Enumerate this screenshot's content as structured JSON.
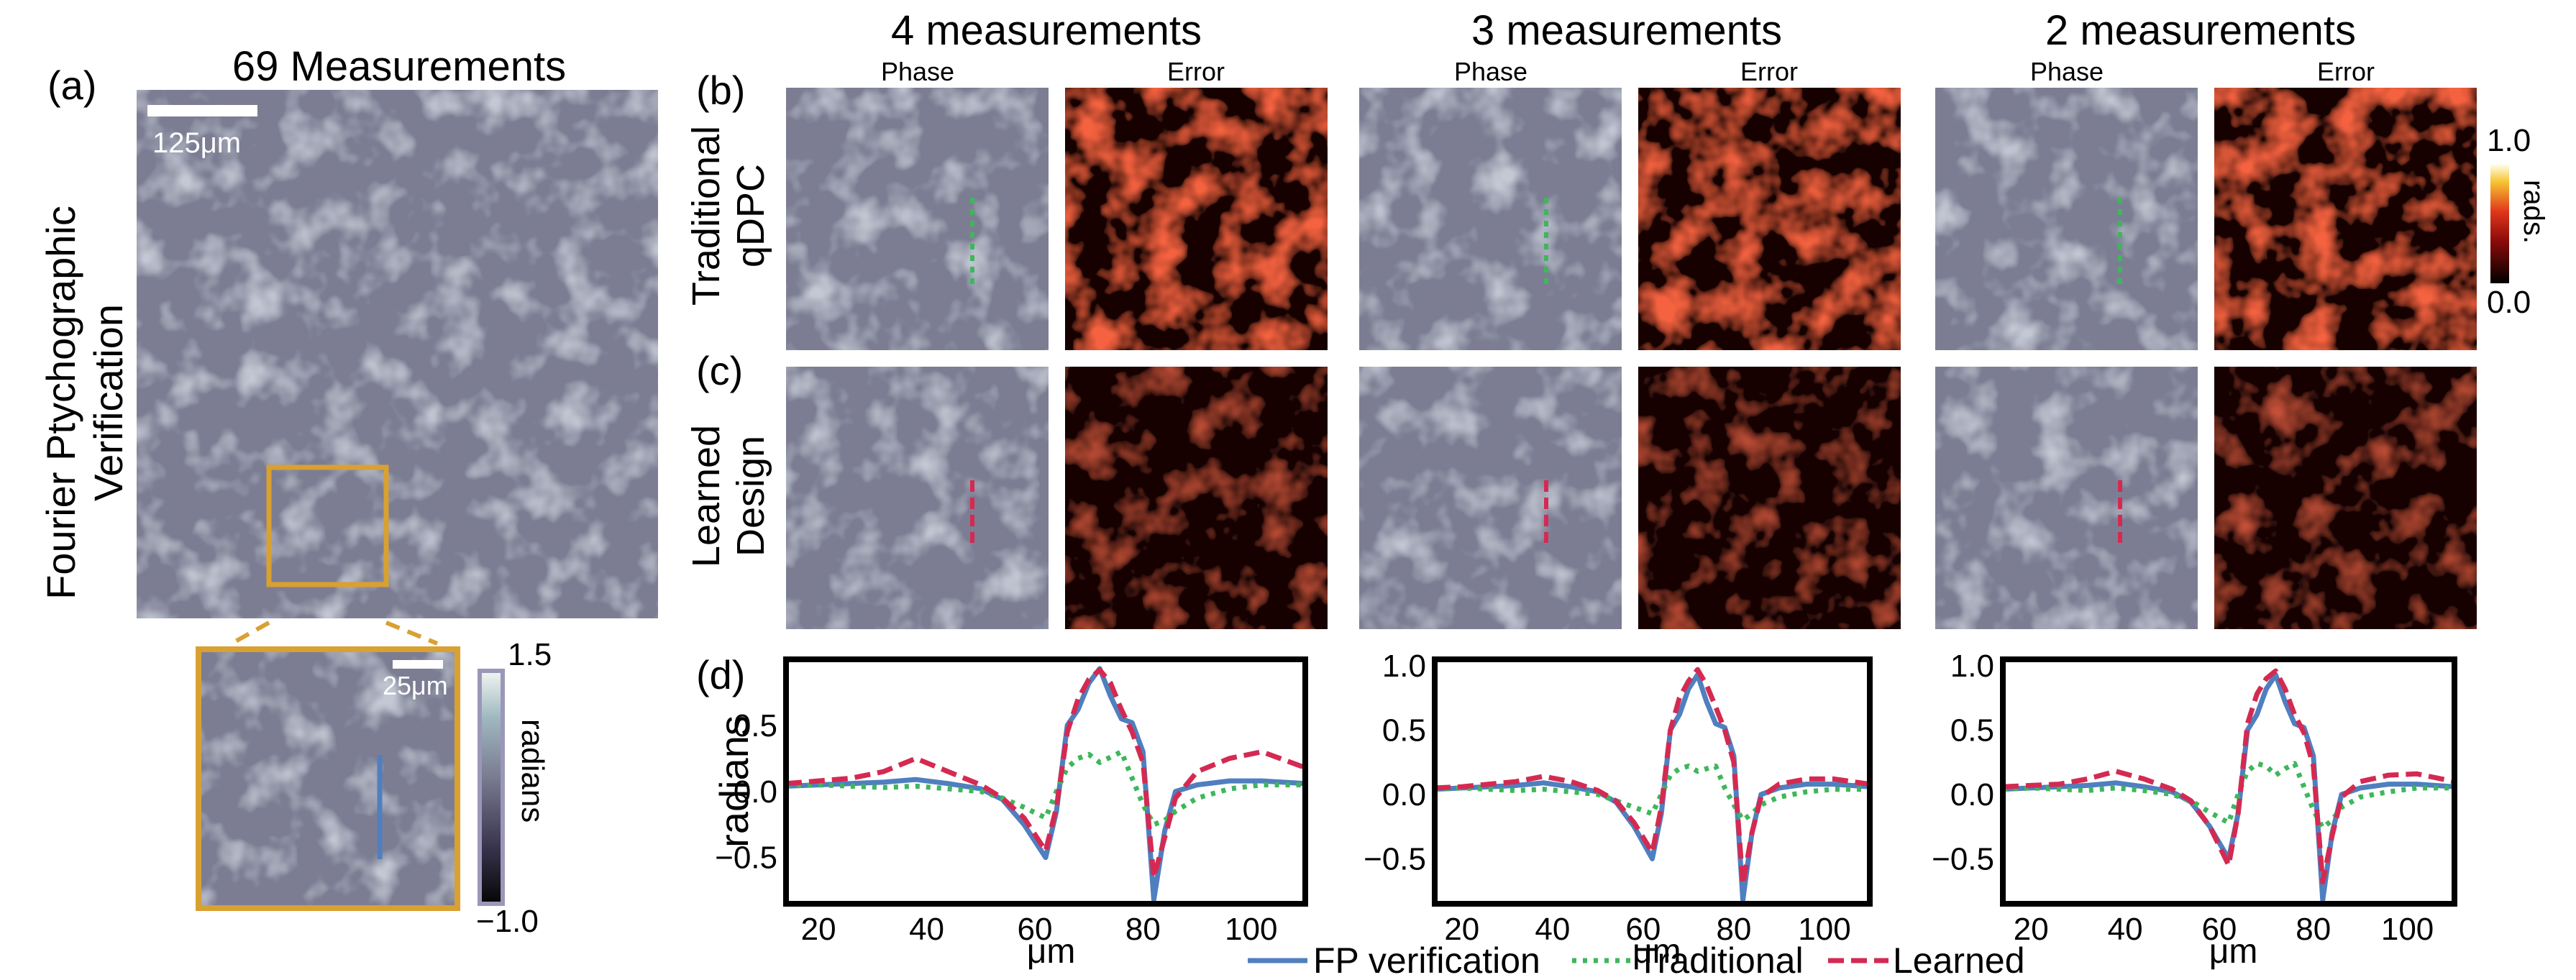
{
  "panel_labels": {
    "a": "(a)",
    "b": "(b)",
    "c": "(c)",
    "d": "(d)"
  },
  "left": {
    "vertical_title_line1": "Fourier Ptychographic",
    "vertical_title_line2": "Verification",
    "main_title": "69 Measurements",
    "scalebar_main": "125μm",
    "scalebar_inset": "25μm",
    "colorbar": {
      "max": "1.5",
      "min": "−1.0",
      "label": "radians"
    }
  },
  "rows": {
    "traditional_line1": "Traditional",
    "traditional_line2": "qDPC",
    "learned_line1": "Learned",
    "learned_line2": "Design"
  },
  "groups": [
    {
      "title": "4 measurements",
      "phase_label": "Phase",
      "error_label": "Error"
    },
    {
      "title": "3 measurements",
      "phase_label": "Phase",
      "error_label": "Error"
    },
    {
      "title": "2 measurements",
      "phase_label": "Phase",
      "error_label": "Error"
    }
  ],
  "error_colorbar": {
    "max": "1.0",
    "min": "0.0",
    "label": "rads."
  },
  "colors": {
    "fp": "#4f7fbf",
    "traditional": "#3fb65b",
    "learned": "#d42a52",
    "inset_box": "#d9a032",
    "phase_bg": "#7b7d93"
  },
  "chart_data": [
    {
      "type": "line",
      "xlabel": "μm",
      "ylabel": "radians",
      "xlim": [
        14,
        110
      ],
      "ylim": [
        -0.85,
        1.0
      ],
      "xticks": [
        20,
        40,
        60,
        80,
        100
      ],
      "yticks": [
        -0.5,
        0.0,
        0.5
      ],
      "ytick_labels": [
        "−0.5",
        "0.0",
        "0.5"
      ],
      "x": [
        14,
        20,
        26,
        32,
        38,
        44,
        50,
        54,
        58,
        62,
        64,
        66,
        68,
        70,
        72,
        74,
        76,
        78,
        80,
        82,
        84,
        86,
        90,
        96,
        102,
        110
      ],
      "series": [
        {
          "name": "FP verification",
          "values": [
            0.04,
            0.05,
            0.06,
            0.07,
            0.09,
            0.06,
            0.02,
            -0.06,
            -0.25,
            -0.5,
            -0.15,
            0.5,
            0.62,
            0.82,
            0.93,
            0.72,
            0.55,
            0.52,
            0.3,
            -0.82,
            -0.3,
            0.0,
            0.05,
            0.08,
            0.08,
            0.06
          ]
        },
        {
          "name": "Traditional",
          "values": [
            0.04,
            0.05,
            0.04,
            0.03,
            0.04,
            0.02,
            0.0,
            -0.05,
            -0.12,
            -0.2,
            0.0,
            0.18,
            0.25,
            0.28,
            0.22,
            0.26,
            0.3,
            0.1,
            -0.1,
            -0.25,
            -0.22,
            -0.15,
            -0.05,
            0.02,
            0.05,
            0.05
          ]
        },
        {
          "name": "Learned",
          "values": [
            0.06,
            0.08,
            0.1,
            0.15,
            0.25,
            0.15,
            0.05,
            -0.05,
            -0.2,
            -0.45,
            -0.12,
            0.45,
            0.7,
            0.85,
            0.92,
            0.82,
            0.62,
            0.45,
            0.22,
            -0.65,
            -0.35,
            -0.05,
            0.15,
            0.25,
            0.3,
            0.18
          ]
        }
      ]
    },
    {
      "type": "line",
      "xlabel": "μm",
      "ylabel": "",
      "xlim": [
        14,
        110
      ],
      "ylim": [
        -0.85,
        1.05
      ],
      "xticks": [
        20,
        40,
        60,
        80,
        100
      ],
      "yticks": [
        -0.5,
        0.0,
        0.5,
        1.0
      ],
      "ytick_labels": [
        "−0.5",
        "0.0",
        "0.5",
        "1.0"
      ],
      "x": [
        14,
        20,
        26,
        32,
        38,
        44,
        50,
        54,
        58,
        62,
        64,
        66,
        68,
        70,
        72,
        74,
        76,
        78,
        80,
        82,
        84,
        86,
        90,
        96,
        102,
        110
      ],
      "series": [
        {
          "name": "FP verification",
          "values": [
            0.04,
            0.05,
            0.06,
            0.07,
            0.09,
            0.06,
            0.02,
            -0.06,
            -0.25,
            -0.5,
            -0.15,
            0.5,
            0.62,
            0.82,
            0.93,
            0.72,
            0.55,
            0.52,
            0.3,
            -0.82,
            -0.3,
            0.0,
            0.05,
            0.08,
            0.08,
            0.06
          ]
        },
        {
          "name": "Traditional",
          "values": [
            0.04,
            0.05,
            0.04,
            0.03,
            0.04,
            0.02,
            0.0,
            -0.05,
            -0.1,
            -0.15,
            0.0,
            0.15,
            0.2,
            0.22,
            0.18,
            0.2,
            0.22,
            0.05,
            -0.08,
            -0.2,
            -0.15,
            -0.08,
            -0.02,
            0.02,
            0.04,
            0.04
          ]
        },
        {
          "name": "Learned",
          "values": [
            0.05,
            0.06,
            0.08,
            0.1,
            0.14,
            0.1,
            0.03,
            -0.05,
            -0.22,
            -0.45,
            -0.1,
            0.5,
            0.75,
            0.88,
            0.97,
            0.85,
            0.68,
            0.5,
            0.25,
            -0.7,
            -0.3,
            -0.02,
            0.08,
            0.12,
            0.12,
            0.08
          ]
        }
      ]
    },
    {
      "type": "line",
      "xlabel": "μm",
      "ylabel": "",
      "xlim": [
        14,
        110
      ],
      "ylim": [
        -0.85,
        1.05
      ],
      "xticks": [
        20,
        40,
        60,
        80,
        100
      ],
      "yticks": [
        -0.5,
        0.0,
        0.5,
        1.0
      ],
      "ytick_labels": [
        "−0.5",
        "0.0",
        "0.5",
        "1.0"
      ],
      "x": [
        14,
        20,
        26,
        32,
        38,
        44,
        50,
        54,
        58,
        62,
        64,
        66,
        68,
        70,
        72,
        74,
        76,
        78,
        80,
        82,
        84,
        86,
        90,
        96,
        102,
        110
      ],
      "series": [
        {
          "name": "FP verification",
          "values": [
            0.04,
            0.05,
            0.06,
            0.07,
            0.09,
            0.06,
            0.02,
            -0.06,
            -0.25,
            -0.5,
            -0.15,
            0.5,
            0.62,
            0.82,
            0.93,
            0.72,
            0.55,
            0.52,
            0.3,
            -0.82,
            -0.3,
            0.0,
            0.05,
            0.08,
            0.08,
            0.06
          ]
        },
        {
          "name": "Traditional",
          "values": [
            0.04,
            0.05,
            0.04,
            0.03,
            0.05,
            0.03,
            0.0,
            -0.05,
            -0.14,
            -0.22,
            0.0,
            0.18,
            0.24,
            0.22,
            0.15,
            0.2,
            0.24,
            0.06,
            -0.12,
            -0.26,
            -0.2,
            -0.1,
            -0.02,
            0.02,
            0.05,
            0.05
          ]
        },
        {
          "name": "Learned",
          "values": [
            0.06,
            0.07,
            0.08,
            0.12,
            0.18,
            0.12,
            0.04,
            -0.05,
            -0.25,
            -0.55,
            -0.15,
            0.55,
            0.78,
            0.9,
            0.96,
            0.82,
            0.62,
            0.48,
            0.22,
            -0.68,
            -0.32,
            -0.02,
            0.1,
            0.15,
            0.16,
            0.1
          ]
        }
      ]
    }
  ],
  "legend": [
    {
      "label": "FP verification"
    },
    {
      "label": "Traditional"
    },
    {
      "label": "Learned"
    }
  ]
}
